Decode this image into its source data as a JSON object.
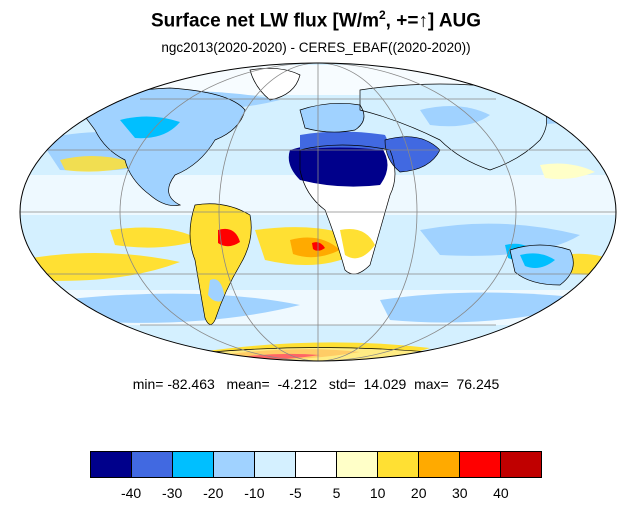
{
  "title": {
    "main": "Surface net LW flux [W/m",
    "sup": "2",
    "after_sup": ", +=",
    "arrow": "↑",
    "tail": "]  AUG"
  },
  "subtitle": "ngc2013(2020-2020) - CERES_EBAF((2020-2020))",
  "stats": {
    "min_label": "min=",
    "min": "-82.463",
    "mean_label": "mean=",
    "mean": "-4.212",
    "std_label": "std=",
    "std": "14.029",
    "max_label": "max=",
    "max": "76.245"
  },
  "colorbar": {
    "colors": [
      "#00008b",
      "#4169e1",
      "#00bfff",
      "#a0d2ff",
      "#d4f0ff",
      "#ffffff",
      "#ffffc8",
      "#ffe033",
      "#ffaa00",
      "#ff0000",
      "#c00000"
    ],
    "labels": [
      "-40",
      "-30",
      "-20",
      "-10",
      "-5",
      "5",
      "10",
      "20",
      "30",
      "40"
    ]
  },
  "map": {
    "projection": "mollweide",
    "ocean_base_color": "#d4f0ff",
    "gridline_color": "#888888",
    "coastline_color": "#000000"
  }
}
